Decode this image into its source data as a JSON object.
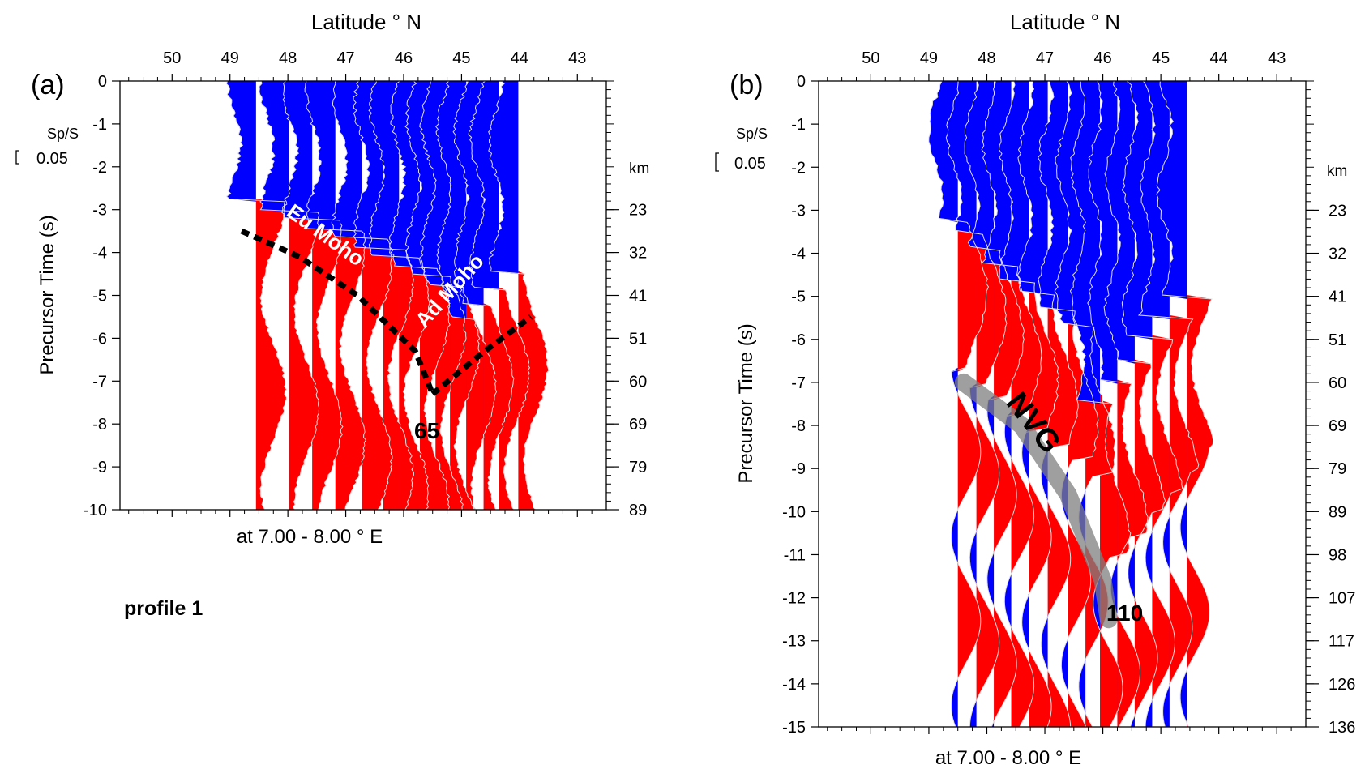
{
  "chart_data": [
    {
      "type": "area",
      "panel_label": "(a)",
      "xlabel_top": "Latitude ° N",
      "ylabel": "Precursor Time (s)",
      "xlabel_bottom": "at 7.00 - 8.00 ° E",
      "right_axis_title": "km",
      "scale_label": "Sp/S",
      "scale_value": "0.05",
      "xlim": [
        50.9,
        42.5
      ],
      "ylim": [
        -10,
        0
      ],
      "x_ticks": [
        "50",
        "49",
        "48",
        "47",
        "46",
        "45",
        "44",
        "43"
      ],
      "y_ticks": [
        "0",
        "-1",
        "-2",
        "-3",
        "-4",
        "-5",
        "-6",
        "-7",
        "-8",
        "-9",
        "-10"
      ],
      "right_ticks": [
        {
          "t": -3,
          "label": "23"
        },
        {
          "t": -4,
          "label": "32"
        },
        {
          "t": -5,
          "label": "41"
        },
        {
          "t": -6,
          "label": "51"
        },
        {
          "t": -7,
          "label": "60"
        },
        {
          "t": -8,
          "label": "69"
        },
        {
          "t": -9,
          "label": "79"
        },
        {
          "t": -10,
          "label": "89"
        }
      ],
      "colors": {
        "positive": "#ff0000",
        "negative": "#0000ff",
        "trace": "#e0e0e0"
      },
      "regions": [
        {
          "lat": [
            48.5,
            45.0
          ],
          "t": [
            0,
            -3.5
          ],
          "polarity": "negative"
        },
        {
          "lat": [
            46.8,
            44.0
          ],
          "t": [
            -2.5,
            -6.0
          ],
          "polarity": "negative"
        },
        {
          "lat": [
            48.3,
            44.0
          ],
          "t": [
            -5.5,
            -10
          ],
          "polarity": "positive"
        }
      ],
      "annotations": [
        {
          "text": "Eu Moho",
          "lat": 47.3,
          "t": -3.6
        },
        {
          "text": "Ad Moho",
          "lat": 44.6,
          "t": -5.0
        },
        {
          "text": "65",
          "lat": 45.4,
          "t": -8.1
        }
      ],
      "dashed_lines": [
        {
          "name": "Eu Moho",
          "points": [
            [
              48.8,
              -3.5
            ],
            [
              47.8,
              -4.1
            ],
            [
              46.8,
              -5.0
            ],
            [
              45.8,
              -6.3
            ],
            [
              45.5,
              -7.3
            ]
          ]
        },
        {
          "name": "Ad Moho",
          "points": [
            [
              45.5,
              -7.3
            ],
            [
              44.6,
              -6.3
            ],
            [
              43.8,
              -5.5
            ]
          ]
        }
      ],
      "caption": "profile 1"
    },
    {
      "type": "area",
      "panel_label": "(b)",
      "xlabel_top": "Latitude ° N",
      "ylabel": "Precursor Time (s)",
      "xlabel_bottom": "at 7.00 - 8.00 ° E",
      "right_axis_title": "km",
      "scale_label": "Sp/S",
      "scale_value": "0.05",
      "xlim": [
        50.9,
        42.5
      ],
      "ylim": [
        -15,
        0
      ],
      "x_ticks": [
        "50",
        "49",
        "48",
        "47",
        "46",
        "45",
        "44",
        "43"
      ],
      "y_ticks": [
        "0",
        "-1",
        "-2",
        "-3",
        "-4",
        "-5",
        "-6",
        "-7",
        "-8",
        "-9",
        "-10",
        "-11",
        "-12",
        "-13",
        "-14",
        "-15"
      ],
      "right_ticks": [
        {
          "t": -3,
          "label": "23"
        },
        {
          "t": -4,
          "label": "32"
        },
        {
          "t": -5,
          "label": "41"
        },
        {
          "t": -6,
          "label": "51"
        },
        {
          "t": -7,
          "label": "60"
        },
        {
          "t": -8,
          "label": "69"
        },
        {
          "t": -9,
          "label": "79"
        },
        {
          "t": -10,
          "label": "89"
        },
        {
          "t": -11,
          "label": "98"
        },
        {
          "t": -12,
          "label": "107"
        },
        {
          "t": -13,
          "label": "117"
        },
        {
          "t": -14,
          "label": "126"
        },
        {
          "t": -15,
          "label": "136"
        }
      ],
      "colors": {
        "positive": "#ff0000",
        "negative": "#0000ff",
        "trace": "#e0e0e0",
        "nvg_band": "#7f7f7f"
      },
      "annotations": [
        {
          "text": "NVG",
          "lat": 46.9,
          "t": -8.8
        },
        {
          "text": "110",
          "lat": 45.4,
          "t": -12.2
        }
      ],
      "nvg_band": [
        [
          48.4,
          -7.0
        ],
        [
          47.4,
          -8.0
        ],
        [
          46.6,
          -9.6
        ],
        [
          46.0,
          -11.6
        ],
        [
          45.9,
          -12.5
        ]
      ]
    }
  ]
}
